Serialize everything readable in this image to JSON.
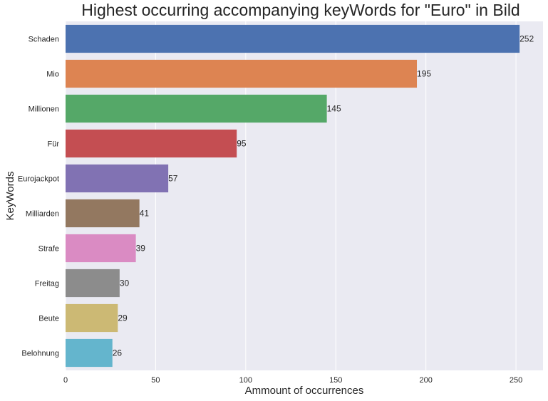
{
  "chart_data": {
    "type": "bar",
    "orientation": "horizontal",
    "title": "Highest occurring accompanying keyWords for \"Euro\" in Bild",
    "xlabel": "Ammount of occurrences",
    "ylabel": "KeyWords",
    "categories": [
      "Schaden",
      "Mio",
      "Millionen",
      "Für",
      "Eurojackpot",
      "Milliarden",
      "Strafe",
      "Freitag",
      "Beute",
      "Belohnung"
    ],
    "values": [
      252,
      195,
      145,
      95,
      57,
      41,
      39,
      30,
      29,
      26
    ],
    "colors": [
      "#4c72b0",
      "#dd8452",
      "#55a868",
      "#c44e52",
      "#8172b3",
      "#937860",
      "#da8bc3",
      "#8c8c8c",
      "#ccb974",
      "#64b5cd"
    ],
    "xticks": [
      0,
      50,
      100,
      150,
      200,
      250
    ],
    "xlim": [
      0,
      265
    ],
    "grid": true,
    "background": "#eaeaf2",
    "grid_color": "#ffffff",
    "data_labels": true
  }
}
